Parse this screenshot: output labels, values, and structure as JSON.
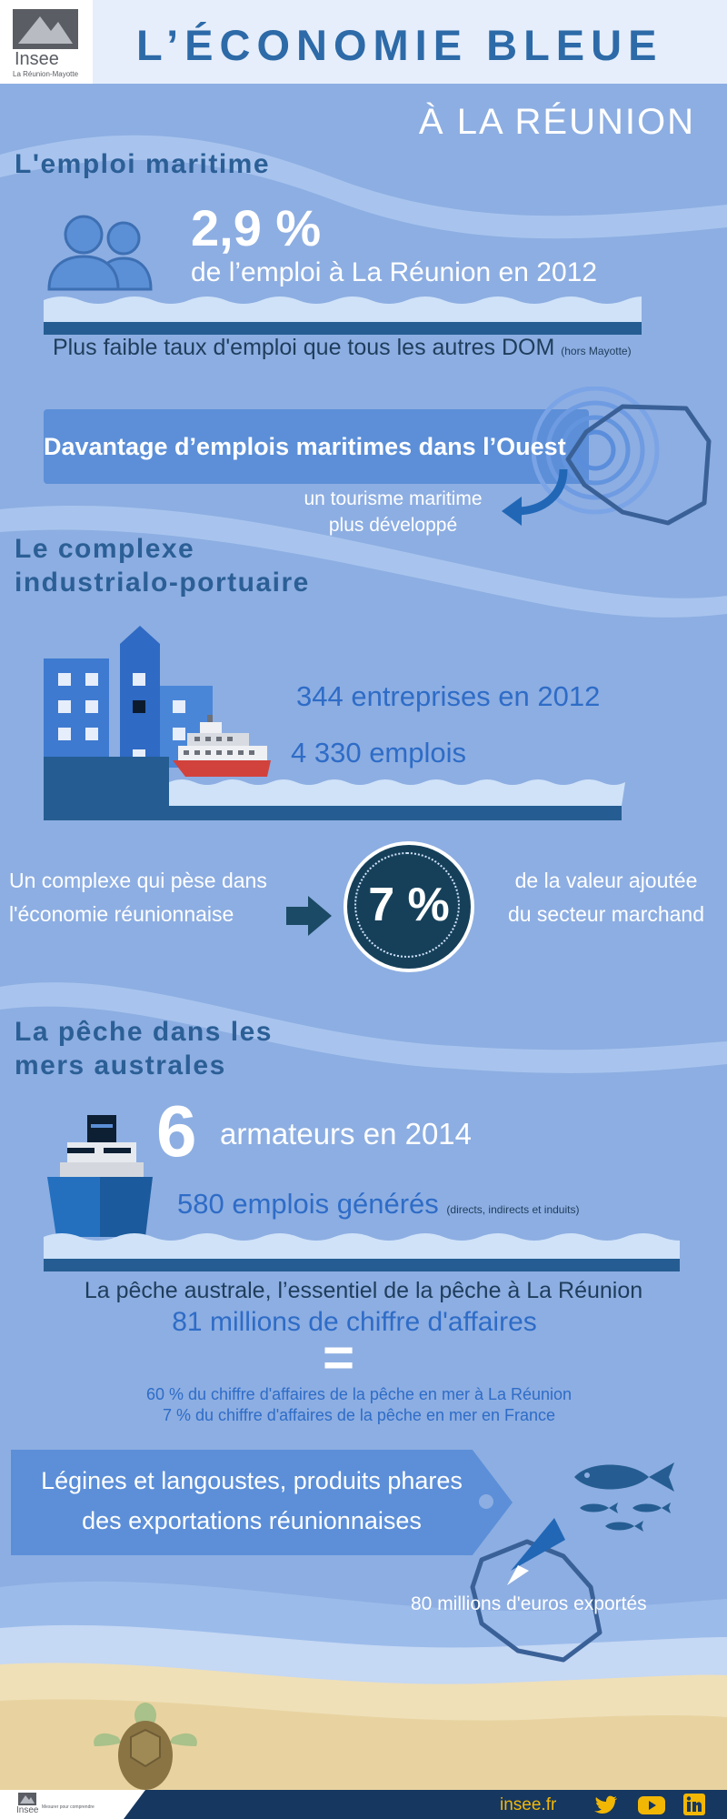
{
  "header": {
    "logo_text": "Insee",
    "logo_sub": "La Réunion-Mayotte",
    "title": "L’ÉCONOMIE BLEUE",
    "subtitle": "À LA RÉUNION"
  },
  "emploi": {
    "section_title": "L'emploi maritime",
    "stat": "2,9 %",
    "stat_label": "de l’emploi à La Réunion en 2012",
    "comparison": "Plus faible taux d'emploi que tous les autres DOM",
    "comparison_note": "(hors Mayotte)",
    "banner": "Davantage d’emplois maritimes dans l’Ouest",
    "tourism_line1": "un tourisme maritime",
    "tourism_line2": "plus développé"
  },
  "complexe": {
    "section_title_line1": "Le complexe",
    "section_title_line2": "industrialo-portuaire",
    "entreprises": "344 entreprises en 2012",
    "emplois": "4 330 emplois",
    "left_line1": "Un complexe qui pèse dans",
    "left_line2": "l'économie réunionnaise",
    "percent": "7 %",
    "right_line1": "de la valeur ajoutée",
    "right_line2": "du secteur marchand"
  },
  "peche": {
    "section_title_line1": "La pêche dans les",
    "section_title_line2": "mers australes",
    "armateurs_num": "6",
    "armateurs_label": "armateurs en 2014",
    "emplois": "580 emplois générés",
    "emplois_note": "(directs, indirects et induits)",
    "essentiel": "La pêche australe, l’essentiel de la pêche à La Réunion",
    "ca": "81 millions de chiffre d'affaires",
    "equals": "=",
    "share1": "60 % du chiffre d'affaires de la pêche en mer à La Réunion",
    "share2": "7 % du chiffre d'affaires de la pêche en mer en France",
    "tag_line1": "Légines et langoustes, produits phares",
    "tag_line2": "des exportations réunionnaises",
    "exports": "80 millions d'euros exportés"
  },
  "footer": {
    "logo_text": "Insee",
    "logo_sub": "Mesurer pour comprendre",
    "site": "insee.fr",
    "icons": [
      "twitter-icon",
      "youtube-icon",
      "linkedin-icon"
    ]
  },
  "colors": {
    "background": "#8daee2",
    "title_blue": "#2d6aa8",
    "dark_navy": "#16375f",
    "accent_blue": "#2e6cc7"
  }
}
